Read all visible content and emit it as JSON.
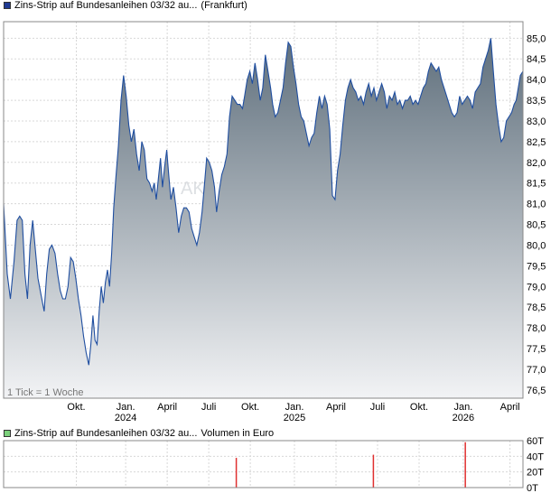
{
  "chart_data": [
    {
      "type": "area",
      "legend": {
        "name": "Zins-Strip auf Bundesanleihen 03/32 au...",
        "qualifier": "(Frankfurt)",
        "color": "#1f3a93"
      },
      "note": "1 Tick = 1 Woche",
      "watermark": "AK",
      "y_ticks": [
        "85,0",
        "84,5",
        "84,0",
        "83,5",
        "83,0",
        "82,5",
        "82,0",
        "81,5",
        "81,0",
        "80,5",
        "80,0",
        "79,5",
        "79,0",
        "78,5",
        "78,0",
        "77,5",
        "77,0",
        "76,5"
      ],
      "y_tick_values": [
        85.0,
        84.5,
        84.0,
        83.5,
        83.0,
        82.5,
        82.0,
        81.5,
        81.0,
        80.5,
        80.0,
        79.5,
        79.0,
        78.5,
        78.0,
        77.5,
        77.0,
        76.5
      ],
      "ylim": [
        76.3,
        85.4
      ],
      "x_ticks": [
        {
          "label": "Okt.",
          "year": "",
          "t": 0.14
        },
        {
          "label": "Jan.",
          "year": "2024",
          "t": 0.235
        },
        {
          "label": "April",
          "year": "",
          "t": 0.315
        },
        {
          "label": "Juli",
          "year": "",
          "t": 0.395
        },
        {
          "label": "Okt.",
          "year": "",
          "t": 0.475
        },
        {
          "label": "Jan.",
          "year": "2025",
          "t": 0.56
        },
        {
          "label": "April",
          "year": "",
          "t": 0.64
        },
        {
          "label": "Juli",
          "year": "",
          "t": 0.72
        },
        {
          "label": "Okt.",
          "year": "",
          "t": 0.8
        },
        {
          "label": "Jan.",
          "year": "2026",
          "t": 0.885
        },
        {
          "label": "April",
          "year": "",
          "t": 0.975
        }
      ],
      "line_color": "#1f4ea0",
      "fill_top": "#5f6f7c",
      "fill_bottom": "#f2f3f5",
      "series": [
        {
          "points": [
            [
              0.0,
              81.0
            ],
            [
              0.007,
              79.3
            ],
            [
              0.013,
              78.7
            ],
            [
              0.02,
              79.6
            ],
            [
              0.026,
              80.6
            ],
            [
              0.031,
              80.7
            ],
            [
              0.036,
              80.6
            ],
            [
              0.041,
              79.3
            ],
            [
              0.046,
              78.7
            ],
            [
              0.051,
              80.0
            ],
            [
              0.056,
              80.6
            ],
            [
              0.061,
              79.9
            ],
            [
              0.066,
              79.2
            ],
            [
              0.072,
              78.8
            ],
            [
              0.078,
              78.4
            ],
            [
              0.083,
              79.3
            ],
            [
              0.088,
              79.9
            ],
            [
              0.093,
              80.0
            ],
            [
              0.099,
              79.8
            ],
            [
              0.104,
              79.3
            ],
            [
              0.109,
              78.9
            ],
            [
              0.114,
              78.7
            ],
            [
              0.119,
              78.7
            ],
            [
              0.124,
              79.0
            ],
            [
              0.129,
              79.7
            ],
            [
              0.134,
              79.6
            ],
            [
              0.139,
              79.2
            ],
            [
              0.144,
              78.7
            ],
            [
              0.149,
              78.3
            ],
            [
              0.154,
              77.8
            ],
            [
              0.159,
              77.4
            ],
            [
              0.164,
              77.1
            ],
            [
              0.168,
              77.6
            ],
            [
              0.172,
              78.3
            ],
            [
              0.176,
              77.7
            ],
            [
              0.18,
              77.6
            ],
            [
              0.184,
              78.4
            ],
            [
              0.188,
              79.0
            ],
            [
              0.192,
              78.6
            ],
            [
              0.196,
              79.1
            ],
            [
              0.2,
              79.4
            ],
            [
              0.204,
              79.0
            ],
            [
              0.208,
              79.8
            ],
            [
              0.212,
              80.9
            ],
            [
              0.216,
              81.6
            ],
            [
              0.221,
              82.4
            ],
            [
              0.226,
              83.5
            ],
            [
              0.231,
              84.1
            ],
            [
              0.236,
              83.6
            ],
            [
              0.241,
              82.9
            ],
            [
              0.246,
              82.5
            ],
            [
              0.251,
              82.8
            ],
            [
              0.256,
              82.2
            ],
            [
              0.261,
              81.8
            ],
            [
              0.266,
              82.5
            ],
            [
              0.271,
              82.3
            ],
            [
              0.276,
              81.6
            ],
            [
              0.281,
              81.5
            ],
            [
              0.286,
              81.3
            ],
            [
              0.29,
              81.5
            ],
            [
              0.294,
              81.1
            ],
            [
              0.298,
              81.6
            ],
            [
              0.302,
              82.1
            ],
            [
              0.306,
              81.4
            ],
            [
              0.31,
              81.9
            ],
            [
              0.314,
              82.3
            ],
            [
              0.318,
              81.7
            ],
            [
              0.322,
              81.1
            ],
            [
              0.327,
              81.4
            ],
            [
              0.332,
              80.9
            ],
            [
              0.337,
              80.3
            ],
            [
              0.342,
              80.7
            ],
            [
              0.347,
              80.9
            ],
            [
              0.352,
              80.9
            ],
            [
              0.357,
              80.8
            ],
            [
              0.362,
              80.4
            ],
            [
              0.367,
              80.2
            ],
            [
              0.372,
              80.0
            ],
            [
              0.377,
              80.3
            ],
            [
              0.382,
              80.8
            ],
            [
              0.387,
              81.5
            ],
            [
              0.391,
              82.1
            ],
            [
              0.396,
              82.0
            ],
            [
              0.401,
              81.8
            ],
            [
              0.406,
              81.4
            ],
            [
              0.41,
              80.8
            ],
            [
              0.415,
              81.3
            ],
            [
              0.42,
              81.7
            ],
            [
              0.425,
              81.9
            ],
            [
              0.43,
              82.2
            ],
            [
              0.435,
              83.1
            ],
            [
              0.44,
              83.6
            ],
            [
              0.445,
              83.5
            ],
            [
              0.45,
              83.4
            ],
            [
              0.455,
              83.4
            ],
            [
              0.46,
              83.3
            ],
            [
              0.464,
              83.6
            ],
            [
              0.469,
              84.0
            ],
            [
              0.474,
              84.2
            ],
            [
              0.479,
              83.9
            ],
            [
              0.484,
              84.4
            ],
            [
              0.489,
              84.0
            ],
            [
              0.494,
              83.5
            ],
            [
              0.499,
              83.8
            ],
            [
              0.504,
              84.6
            ],
            [
              0.509,
              84.2
            ],
            [
              0.514,
              83.8
            ],
            [
              0.518,
              83.4
            ],
            [
              0.523,
              83.1
            ],
            [
              0.528,
              83.2
            ],
            [
              0.533,
              83.5
            ],
            [
              0.538,
              83.8
            ],
            [
              0.543,
              84.4
            ],
            [
              0.548,
              84.9
            ],
            [
              0.553,
              84.8
            ],
            [
              0.558,
              84.3
            ],
            [
              0.563,
              83.9
            ],
            [
              0.568,
              83.4
            ],
            [
              0.573,
              83.1
            ],
            [
              0.578,
              83.0
            ],
            [
              0.583,
              82.7
            ],
            [
              0.588,
              82.4
            ],
            [
              0.593,
              82.6
            ],
            [
              0.598,
              82.7
            ],
            [
              0.603,
              83.2
            ],
            [
              0.608,
              83.6
            ],
            [
              0.613,
              83.3
            ],
            [
              0.618,
              83.6
            ],
            [
              0.623,
              83.4
            ],
            [
              0.628,
              82.8
            ],
            [
              0.633,
              81.2
            ],
            [
              0.638,
              81.1
            ],
            [
              0.643,
              81.8
            ],
            [
              0.648,
              82.2
            ],
            [
              0.653,
              82.9
            ],
            [
              0.658,
              83.5
            ],
            [
              0.663,
              83.8
            ],
            [
              0.668,
              84.0
            ],
            [
              0.673,
              83.8
            ],
            [
              0.678,
              83.7
            ],
            [
              0.683,
              83.5
            ],
            [
              0.688,
              83.6
            ],
            [
              0.693,
              83.4
            ],
            [
              0.698,
              83.7
            ],
            [
              0.703,
              83.9
            ],
            [
              0.708,
              83.6
            ],
            [
              0.713,
              83.8
            ],
            [
              0.718,
              83.5
            ],
            [
              0.723,
              83.7
            ],
            [
              0.728,
              83.9
            ],
            [
              0.733,
              83.7
            ],
            [
              0.738,
              83.3
            ],
            [
              0.743,
              83.6
            ],
            [
              0.748,
              83.5
            ],
            [
              0.753,
              83.7
            ],
            [
              0.758,
              83.4
            ],
            [
              0.763,
              83.5
            ],
            [
              0.768,
              83.3
            ],
            [
              0.773,
              83.5
            ],
            [
              0.778,
              83.5
            ],
            [
              0.783,
              83.6
            ],
            [
              0.788,
              83.4
            ],
            [
              0.793,
              83.5
            ],
            [
              0.798,
              83.4
            ],
            [
              0.803,
              83.6
            ],
            [
              0.808,
              83.8
            ],
            [
              0.813,
              83.9
            ],
            [
              0.818,
              84.2
            ],
            [
              0.823,
              84.4
            ],
            [
              0.828,
              84.3
            ],
            [
              0.833,
              84.2
            ],
            [
              0.838,
              84.3
            ],
            [
              0.843,
              84.0
            ],
            [
              0.848,
              83.8
            ],
            [
              0.853,
              83.6
            ],
            [
              0.858,
              83.4
            ],
            [
              0.863,
              83.2
            ],
            [
              0.868,
              83.1
            ],
            [
              0.873,
              83.2
            ],
            [
              0.878,
              83.6
            ],
            [
              0.883,
              83.4
            ],
            [
              0.888,
              83.5
            ],
            [
              0.893,
              83.6
            ],
            [
              0.898,
              83.5
            ],
            [
              0.903,
              83.3
            ],
            [
              0.908,
              83.7
            ],
            [
              0.913,
              83.8
            ],
            [
              0.918,
              83.9
            ],
            [
              0.923,
              84.3
            ],
            [
              0.928,
              84.5
            ],
            [
              0.933,
              84.7
            ],
            [
              0.938,
              85.0
            ],
            [
              0.943,
              84.2
            ],
            [
              0.948,
              83.4
            ],
            [
              0.953,
              82.9
            ],
            [
              0.958,
              82.5
            ],
            [
              0.963,
              82.6
            ],
            [
              0.968,
              83.0
            ],
            [
              0.973,
              83.1
            ],
            [
              0.978,
              83.2
            ],
            [
              0.983,
              83.4
            ],
            [
              0.987,
              83.5
            ],
            [
              0.991,
              83.8
            ],
            [
              0.995,
              84.1
            ],
            [
              1.0,
              84.2
            ]
          ]
        }
      ]
    },
    {
      "type": "bar",
      "legend": {
        "name": "Zins-Strip auf Bundesanleihen 03/32 au...",
        "qualifier": "Volumen in Euro",
        "color": "#4cae4c"
      },
      "y_ticks": [
        "60T",
        "40T",
        "20T",
        "0T"
      ],
      "y_tick_values": [
        60,
        40,
        20,
        0
      ],
      "ylim": [
        0,
        60
      ],
      "bar_color": "#e03030",
      "bars": [
        {
          "t": 0.448,
          "value": 38
        },
        {
          "t": 0.712,
          "value": 42
        },
        {
          "t": 0.889,
          "value": 58
        }
      ]
    }
  ]
}
